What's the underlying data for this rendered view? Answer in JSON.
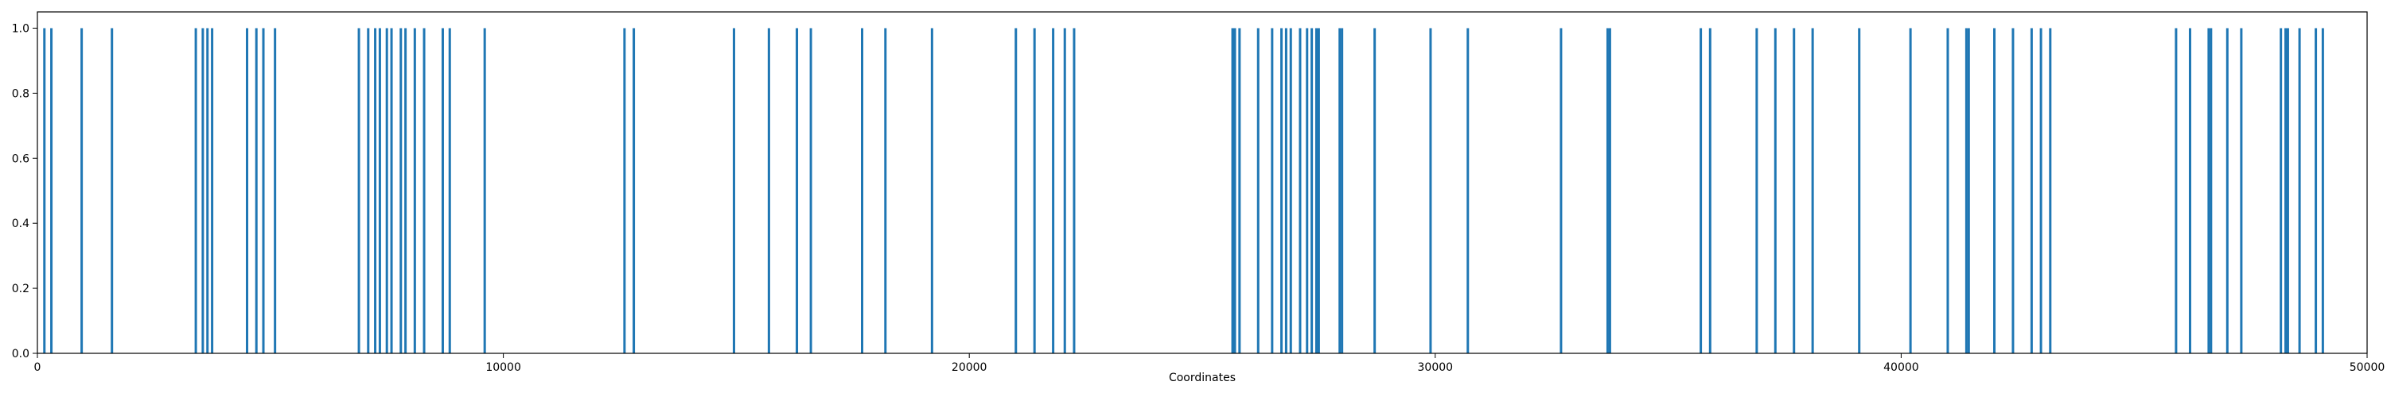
{
  "chart_data": {
    "type": "bar",
    "title": "",
    "xlabel": "Coordinates",
    "ylabel": "",
    "xlim": [
      0,
      50000
    ],
    "ylim": [
      0,
      1.05
    ],
    "grid": false,
    "colors": {
      "bar": "#1f77b4",
      "axis": "#000000"
    },
    "x_ticks": [
      0,
      10000,
      20000,
      30000,
      40000,
      50000
    ],
    "x_tick_labels": [
      "0",
      "10000",
      "20000",
      "30000",
      "40000",
      "50000"
    ],
    "y_ticks": [
      0.0,
      0.2,
      0.4,
      0.6,
      0.8,
      1.0
    ],
    "y_tick_labels": [
      "0.0",
      "0.2",
      "0.4",
      "0.6",
      "0.8",
      "1.0"
    ],
    "series": [
      {
        "value": 1.0,
        "x": [
          150,
          300,
          950,
          1600,
          3400,
          3550,
          3650,
          3750,
          4500,
          4700,
          4850,
          5100,
          6900,
          7100,
          7250,
          7350,
          7500,
          7600,
          7800,
          7900,
          8100,
          8300,
          8700,
          8850,
          9600,
          12600,
          12800,
          14950,
          15700,
          16300,
          16600,
          17700,
          18200,
          19200,
          21000,
          21400,
          21800,
          22050,
          22250,
          25650,
          25700,
          25800,
          26200,
          26500,
          26700,
          26800,
          26900,
          27100,
          27250,
          27350,
          27450,
          27500,
          27950,
          28000,
          28700,
          29900,
          30700,
          32700,
          33700,
          33750,
          35700,
          35900,
          36900,
          37300,
          37700,
          38100,
          39100,
          40200,
          41000,
          41400,
          41450,
          42000,
          42400,
          42800,
          43000,
          43200,
          45900,
          46200,
          46600,
          46650,
          47000,
          47300,
          48150,
          48250,
          48300,
          48550,
          48900,
          49050
        ]
      }
    ]
  }
}
